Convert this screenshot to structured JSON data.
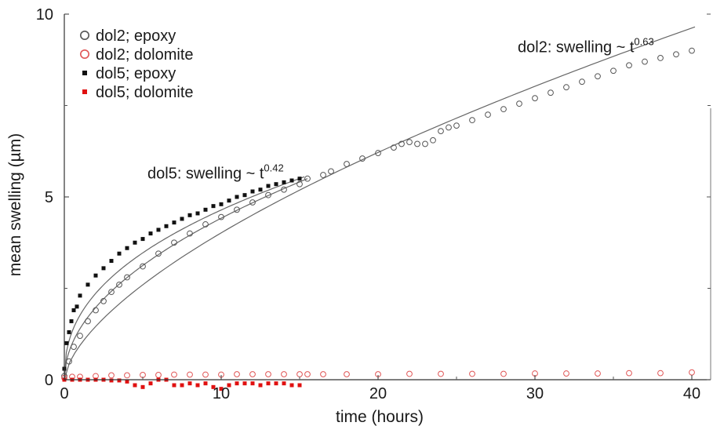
{
  "chart_data": {
    "type": "scatter",
    "xlabel": "time (hours)",
    "ylabel": "mean swelling (µm)",
    "xlim": [
      0,
      41.2
    ],
    "ylim": [
      0,
      10
    ],
    "xticks": [
      0,
      10,
      20,
      30,
      40
    ],
    "xtick_labels": [
      "0",
      "10",
      "20",
      "30",
      "40"
    ],
    "yticks": [
      0,
      5,
      10
    ],
    "ytick_labels": [
      "0",
      "5",
      "10"
    ],
    "grid": false,
    "legend_position": "top-left",
    "series": [
      {
        "name": "dol2; epoxy",
        "marker": "open-circle",
        "color": "#555555",
        "x": [
          0,
          0.3,
          0.6,
          1,
          1.5,
          2,
          2.5,
          3,
          3.5,
          4,
          5,
          6,
          7,
          8,
          9,
          10,
          11,
          12,
          13,
          14,
          15,
          15.5,
          16.5,
          17,
          18,
          19,
          20,
          21,
          21.5,
          22,
          22.5,
          23,
          23.5,
          24,
          24.5,
          25,
          26,
          27,
          28,
          29,
          30,
          31,
          32,
          33,
          34,
          35,
          36,
          37,
          38,
          39,
          40
        ],
        "y": [
          0.1,
          0.5,
          0.9,
          1.2,
          1.6,
          1.9,
          2.15,
          2.4,
          2.6,
          2.8,
          3.1,
          3.45,
          3.75,
          4.0,
          4.25,
          4.45,
          4.65,
          4.85,
          5.05,
          5.2,
          5.35,
          5.5,
          5.6,
          5.7,
          5.9,
          6.05,
          6.2,
          6.35,
          6.45,
          6.5,
          6.45,
          6.45,
          6.55,
          6.8,
          6.9,
          6.95,
          7.1,
          7.25,
          7.4,
          7.55,
          7.7,
          7.85,
          8.0,
          8.15,
          8.3,
          8.45,
          8.6,
          8.7,
          8.8,
          8.9,
          9.0
        ]
      },
      {
        "name": "dol2; dolomite",
        "marker": "open-circle",
        "color": "#e05555",
        "x": [
          0,
          0.5,
          1,
          2,
          3,
          4,
          5,
          6,
          7,
          8,
          9,
          10,
          11,
          12,
          13,
          14,
          15,
          15.5,
          16.5,
          18,
          20,
          22,
          24,
          26,
          28,
          30,
          32,
          34,
          36,
          38,
          40
        ],
        "y": [
          0.05,
          0.08,
          0.08,
          0.1,
          0.12,
          0.12,
          0.13,
          0.13,
          0.14,
          0.14,
          0.14,
          0.14,
          0.15,
          0.15,
          0.15,
          0.15,
          0.15,
          0.15,
          0.15,
          0.15,
          0.15,
          0.16,
          0.16,
          0.16,
          0.16,
          0.17,
          0.17,
          0.17,
          0.18,
          0.18,
          0.2
        ]
      },
      {
        "name": "dol5; epoxy",
        "marker": "filled-square",
        "color": "#111111",
        "x": [
          0,
          0.15,
          0.3,
          0.45,
          0.6,
          0.8,
          1,
          1.5,
          2,
          2.5,
          3,
          3.5,
          4,
          4.5,
          5,
          5.5,
          6,
          6.5,
          7,
          7.5,
          8,
          8.5,
          9,
          9.5,
          10,
          10.5,
          11,
          11.5,
          12,
          12.5,
          13,
          13.5,
          14,
          14.5,
          15
        ],
        "y": [
          0.3,
          1.0,
          1.3,
          1.6,
          1.9,
          2.0,
          2.3,
          2.6,
          2.85,
          3.05,
          3.25,
          3.45,
          3.6,
          3.75,
          3.85,
          4.0,
          4.1,
          4.2,
          4.3,
          4.4,
          4.5,
          4.55,
          4.65,
          4.75,
          4.8,
          4.9,
          5.0,
          5.05,
          5.15,
          5.2,
          5.3,
          5.35,
          5.4,
          5.45,
          5.5
        ]
      },
      {
        "name": "dol5; dolomite",
        "marker": "filled-square",
        "color": "#e01010",
        "x": [
          0,
          0.5,
          1,
          1.5,
          2,
          2.5,
          3,
          3.5,
          4,
          4.5,
          5,
          5.5,
          6,
          6.5,
          7,
          7.5,
          8,
          8.5,
          9,
          9.5,
          10,
          10.5,
          11,
          11.5,
          12,
          12.5,
          13,
          13.5,
          14,
          14.5,
          15
        ],
        "y": [
          0.0,
          0.0,
          0.0,
          0.0,
          0.0,
          0.0,
          -0.02,
          -0.02,
          -0.05,
          -0.15,
          -0.2,
          -0.1,
          0.0,
          0.0,
          -0.15,
          -0.15,
          -0.1,
          -0.15,
          -0.1,
          -0.2,
          -0.25,
          -0.15,
          -0.1,
          -0.1,
          -0.1,
          -0.15,
          -0.1,
          -0.1,
          -0.1,
          -0.15,
          -0.15
        ]
      }
    ],
    "fits": [
      {
        "exponent": 0.63,
        "x_end": 40.2,
        "y_end": 9.65
      },
      {
        "exponent": 0.42,
        "x_end": 15.3,
        "y_end": 5.55
      },
      {
        "exponent": 0.5,
        "x_end": 15.5,
        "y_end": 5.5
      }
    ],
    "annotations": [
      {
        "id": "dol2",
        "text": "dol2: swelling ~ t",
        "sup": "0.63",
        "x": 28.9,
        "y": 9.0
      },
      {
        "id": "dol5",
        "text": "dol5: swelling ~ t",
        "sup": "0.42",
        "x": 5.3,
        "y": 5.55
      }
    ]
  }
}
